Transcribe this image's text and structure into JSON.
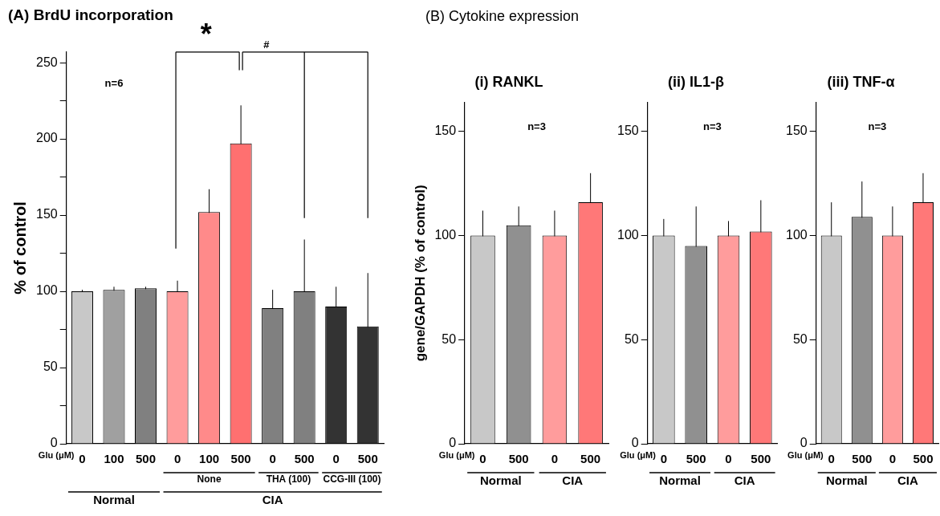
{
  "chart_data": [
    {
      "type": "bar",
      "title": "(A) BrdU incorporation",
      "xlabel": "Glu (μM)",
      "ylabel": "% of control",
      "categories": [
        "0",
        "100",
        "500",
        "0",
        "100",
        "500",
        "0",
        "500",
        "0",
        "500"
      ],
      "values": [
        100,
        101,
        102,
        100,
        152,
        197,
        89,
        100,
        90,
        77
      ],
      "errors": [
        1,
        2,
        1,
        7,
        15,
        25,
        12,
        34,
        13,
        35
      ],
      "colors": [
        "#c8c8c8",
        "#a0a0a0",
        "#808080",
        "#ff9c9c",
        "#ff8a8a",
        "#ff7070",
        "#808080",
        "#808080",
        "#333333",
        "#333333"
      ],
      "ylim": [
        0,
        257
      ],
      "yticks": [
        0,
        {
          "value": 25,
          "label": null
        },
        50,
        {
          "value": 75,
          "label": null
        },
        100,
        {
          "value": 125,
          "label": null
        },
        150,
        {
          "value": 175,
          "label": null
        },
        200,
        {
          "value": 225,
          "label": null
        },
        250
      ],
      "annotations": [
        "n=6",
        "None",
        "THA (100)",
        "CCG-III (100)",
        "Normal",
        "CIA",
        "*",
        "#"
      ]
    },
    {
      "type": "bar",
      "title": "(i) RANKL",
      "subtitle": "(B) Cytokine expression",
      "xlabel": "Glu (μM)",
      "ylabel": "gene/GAPDH (% of control)",
      "categories": [
        "0",
        "500",
        "0",
        "500"
      ],
      "values": [
        100,
        105,
        100,
        116
      ],
      "errors": [
        12,
        9,
        12,
        14
      ],
      "colors": [
        "#c8c8c8",
        "#909090",
        "#ff9c9c",
        "#ff7878"
      ],
      "ylim": [
        0,
        164
      ],
      "yticks": [
        0,
        50,
        100,
        150
      ],
      "annotations": [
        "n=3",
        "Normal",
        "CIA"
      ]
    },
    {
      "type": "bar",
      "title": "(ii) IL1-β",
      "xlabel": "Glu (μM)",
      "categories": [
        "0",
        "500",
        "0",
        "500"
      ],
      "values": [
        100,
        95,
        100,
        102
      ],
      "errors": [
        8,
        19,
        7,
        15
      ],
      "colors": [
        "#c8c8c8",
        "#909090",
        "#ff9c9c",
        "#ff7878"
      ],
      "ylim": [
        0,
        164
      ],
      "yticks": [
        0,
        50,
        100,
        150
      ],
      "annotations": [
        "n=3",
        "Normal",
        "CIA"
      ]
    },
    {
      "type": "bar",
      "title": "(iii) TNF-α",
      "xlabel": "Glu (μM)",
      "categories": [
        "0",
        "500",
        "0",
        "500"
      ],
      "values": [
        100,
        109,
        100,
        116
      ],
      "errors": [
        16,
        17,
        14,
        14
      ],
      "colors": [
        "#c8c8c8",
        "#909090",
        "#ff9c9c",
        "#ff7878"
      ],
      "ylim": [
        0,
        164
      ],
      "yticks": [
        0,
        50,
        100,
        150
      ],
      "annotations": [
        "n=3",
        "Normal",
        "CIA"
      ]
    }
  ]
}
